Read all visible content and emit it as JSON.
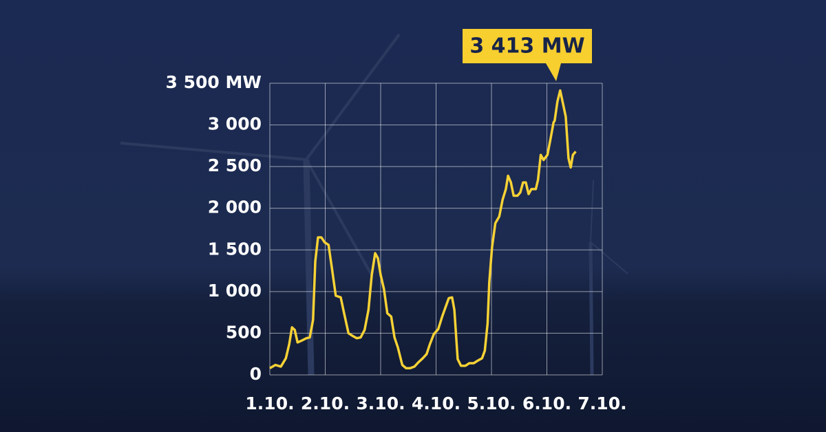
{
  "chart_data": {
    "type": "line",
    "x": [
      1.0,
      1.1,
      1.2,
      1.29,
      1.35,
      1.4,
      1.45,
      1.5,
      1.57,
      1.66,
      1.72,
      1.78,
      1.82,
      1.87,
      1.93,
      1.99,
      2.06,
      2.12,
      2.19,
      2.28,
      2.34,
      2.42,
      2.49,
      2.57,
      2.64,
      2.71,
      2.78,
      2.84,
      2.9,
      2.95,
      3.0,
      3.06,
      3.12,
      3.19,
      3.25,
      3.31,
      3.39,
      3.46,
      3.53,
      3.61,
      3.68,
      3.76,
      3.83,
      3.89,
      3.96,
      4.04,
      4.11,
      4.18,
      4.23,
      4.29,
      4.33,
      4.39,
      4.45,
      4.53,
      4.6,
      4.68,
      4.75,
      4.83,
      4.88,
      4.93,
      4.96,
      5.01,
      5.07,
      5.14,
      5.2,
      5.26,
      5.3,
      5.35,
      5.4,
      5.47,
      5.52,
      5.57,
      5.62,
      5.67,
      5.72,
      5.8,
      5.84,
      5.89,
      5.94,
      6.01,
      6.06,
      6.12,
      6.14,
      6.19,
      6.24,
      6.29,
      6.34,
      6.39,
      6.43,
      6.47,
      6.52
    ],
    "series": [
      {
        "color": "#f7d235",
        "values": [
          80,
          120,
          100,
          200,
          370,
          570,
          540,
          390,
          410,
          440,
          450,
          660,
          1360,
          1650,
          1650,
          1590,
          1560,
          1280,
          950,
          930,
          740,
          500,
          470,
          440,
          450,
          540,
          780,
          1200,
          1460,
          1400,
          1200,
          1030,
          740,
          700,
          450,
          330,
          120,
          80,
          80,
          100,
          150,
          200,
          250,
          370,
          490,
          550,
          700,
          830,
          920,
          930,
          780,
          190,
          110,
          110,
          140,
          140,
          170,
          200,
          290,
          620,
          1110,
          1530,
          1820,
          1900,
          2100,
          2230,
          2390,
          2310,
          2150,
          2150,
          2190,
          2310,
          2310,
          2170,
          2230,
          2230,
          2340,
          2640,
          2580,
          2640,
          2810,
          3030,
          3050,
          3280,
          3413,
          3260,
          3100,
          2600,
          2490,
          2640,
          2680
        ]
      }
    ],
    "xlim": [
      1,
      7
    ],
    "xticks": [
      {
        "value": 1,
        "label": "1.10."
      },
      {
        "value": 2,
        "label": "2.10."
      },
      {
        "value": 3,
        "label": "3.10."
      },
      {
        "value": 4,
        "label": "4.10."
      },
      {
        "value": 5,
        "label": "5.10."
      },
      {
        "value": 6,
        "label": "6.10."
      },
      {
        "value": 7,
        "label": "7.10."
      }
    ],
    "ylim": [
      0,
      3500
    ],
    "yticks": [
      0,
      500,
      {
        "value": 1000,
        "label": "1 000"
      },
      {
        "value": 1500,
        "label": "1 500"
      },
      {
        "value": 2000,
        "label": "2 000"
      },
      {
        "value": 2500,
        "label": "2 500"
      },
      {
        "value": 3000,
        "label": "3 000"
      },
      {
        "value": 3500,
        "label": "3 500 MW"
      }
    ],
    "grid": true,
    "annotation": {
      "label": "3 413 MW",
      "x": 6.24,
      "value": 3413
    }
  }
}
